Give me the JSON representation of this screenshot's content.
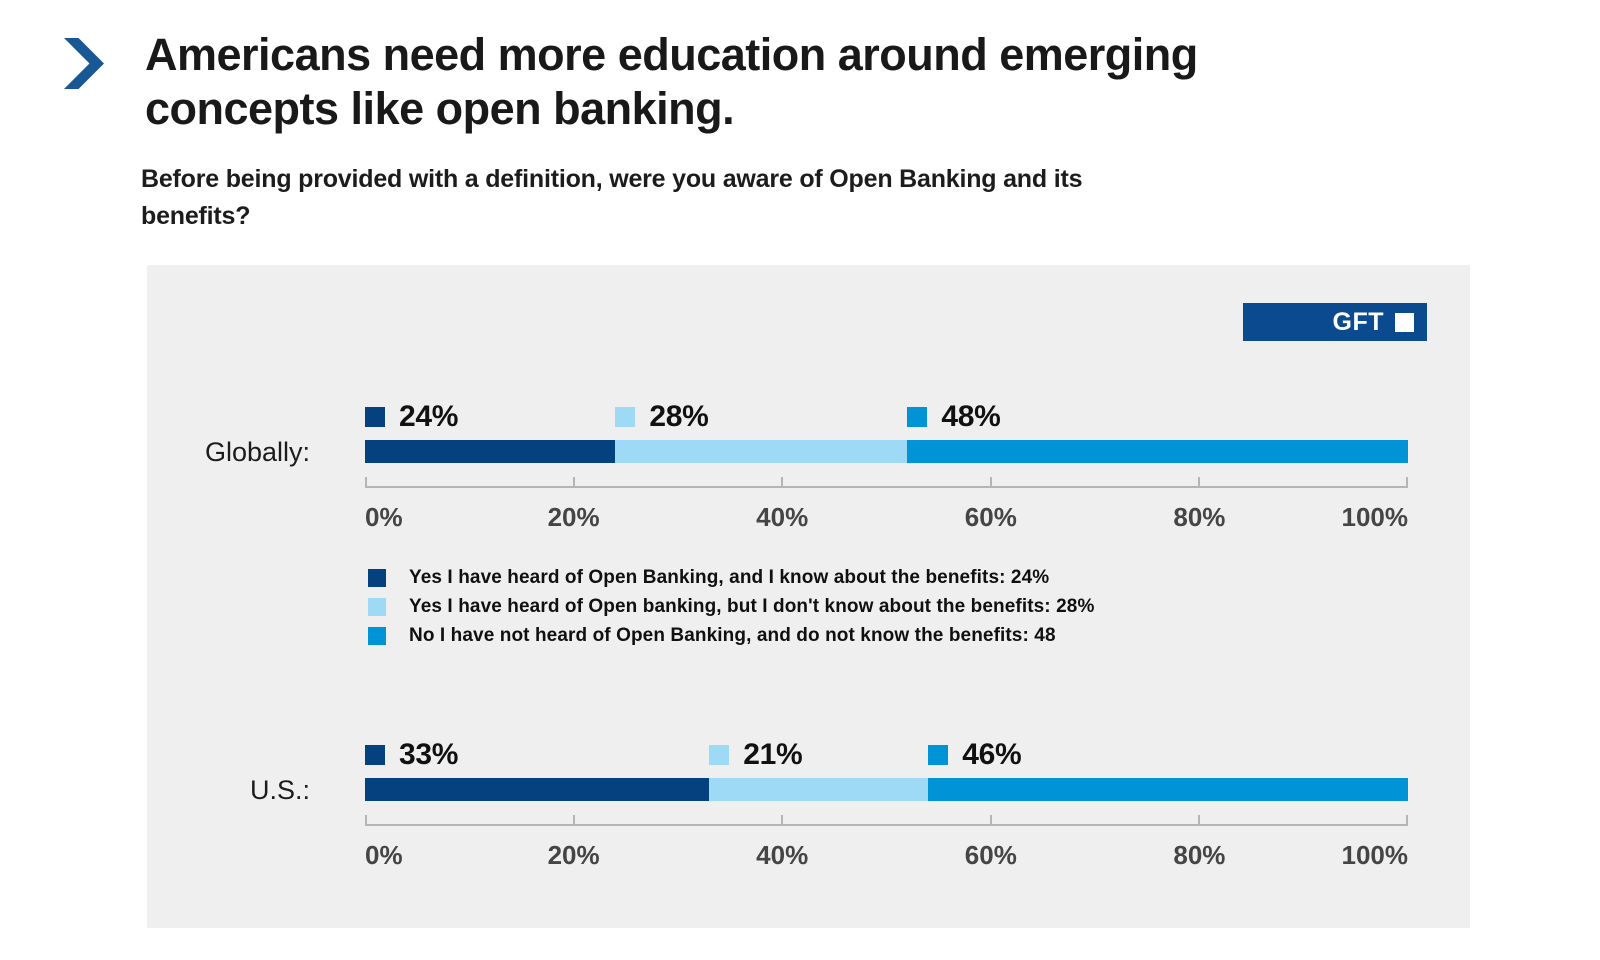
{
  "header": {
    "title_line1": "Americans need more education around emerging",
    "title_line2": "concepts like open banking.",
    "question_line1": "Before being provided with a definition, were you aware of Open Banking and its",
    "question_line2": "benefits?"
  },
  "brand": {
    "logo_text": "GFT"
  },
  "colors": {
    "chevron_blue": "#1a5795",
    "panel_background": "#efefef",
    "logo_background": "#0b4a8f",
    "axis_gray": "#b5b5b5",
    "axis_text_gray": "#454545"
  },
  "chart_data": {
    "type": "bar",
    "orientation": "horizontal",
    "stacked": true,
    "unit": "percent",
    "xlim": [
      0,
      100
    ],
    "x_ticks": [
      "0%",
      "20%",
      "40%",
      "60%",
      "80%",
      "100%"
    ],
    "grid": false,
    "categories": [
      "Globally:",
      "U.S.:"
    ],
    "series": [
      {
        "name": "Yes I have heard of Open Banking, and I know about the benefits",
        "color": "#05417e",
        "values": [
          24,
          33
        ]
      },
      {
        "name": "Yes I have heard of Open banking, but I don't know about the benefits",
        "color": "#9ed9f6",
        "values": [
          28,
          21
        ]
      },
      {
        "name": "No I have not heard of Open Banking, and do not know the benefits",
        "color": "#0094d6",
        "values": [
          48,
          46
        ]
      }
    ],
    "bar_value_labels": [
      [
        "24%",
        "28%",
        "48%"
      ],
      [
        "33%",
        "21%",
        "46%"
      ]
    ],
    "legend": [
      "Yes I have heard of Open Banking, and I know about the benefits: 24%",
      "Yes I have heard of Open banking, but I don't know about the benefits: 28%",
      "No I have not heard of Open Banking, and do not know the benefits: 48"
    ],
    "legend_position": "between-bars"
  }
}
